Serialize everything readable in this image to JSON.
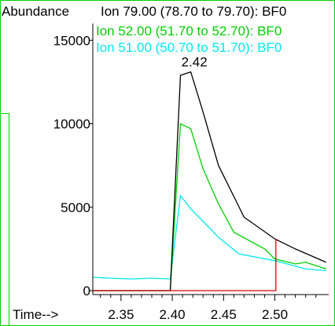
{
  "chart_data": {
    "type": "line",
    "title": "",
    "ylabel": "Abundance",
    "xlabel": "Time-->",
    "xlim": [
      2.3225,
      2.5525
    ],
    "ylim": [
      0,
      16000
    ],
    "x_ticks_major": [
      2.35,
      2.4,
      2.45,
      2.5
    ],
    "x_tick_labels": [
      "2.35",
      "2.40",
      "2.45",
      "2.50"
    ],
    "x_ticks_minor": [
      2.33,
      2.34,
      2.36,
      2.37,
      2.38,
      2.39,
      2.41,
      2.42,
      2.43,
      2.44,
      2.46,
      2.47,
      2.48,
      2.49,
      2.51,
      2.52,
      2.53,
      2.54
    ],
    "y_ticks": [
      0,
      5000,
      10000,
      15000
    ],
    "y_tick_labels": [
      "0",
      "5000",
      "10000",
      "15000"
    ],
    "annotations": [
      {
        "text": "2.42",
        "x": 2.42,
        "y": 13200
      }
    ],
    "legend_position": "top",
    "series": [
      {
        "name": "Ion  79.00 (78.70 to 79.70): BF0",
        "color": "#000000",
        "x": [
          2.3225,
          2.398,
          2.408,
          2.418,
          2.43,
          2.445,
          2.47,
          2.5,
          2.52,
          2.535,
          2.55
        ],
        "values": [
          0,
          0,
          12900,
          13100,
          10700,
          7500,
          4400,
          3100,
          2500,
          2100,
          1700
        ]
      },
      {
        "name": "Ion  52.00 (51.70 to 52.70): BF0",
        "color": "#00d000",
        "x": [
          2.3225,
          2.398,
          2.408,
          2.418,
          2.43,
          2.445,
          2.46,
          2.49,
          2.5,
          2.52,
          2.53,
          2.55
        ],
        "values": [
          0,
          0,
          10000,
          9700,
          7300,
          5200,
          3500,
          2500,
          1900,
          1600,
          1700,
          1300
        ]
      },
      {
        "name": "Ion  51.00 (50.70 to 51.70): BF0",
        "color": "#00e8f0",
        "x": [
          2.3225,
          2.34,
          2.36,
          2.38,
          2.398,
          2.408,
          2.418,
          2.445,
          2.465,
          2.5,
          2.53,
          2.55
        ],
        "values": [
          800,
          750,
          700,
          750,
          700,
          5700,
          4900,
          3200,
          2200,
          1800,
          1300,
          1200
        ]
      },
      {
        "name": "",
        "color": "#e00000",
        "x": [
          2.3225,
          2.501,
          2.501
        ],
        "values": [
          0,
          0,
          3100
        ]
      }
    ]
  }
}
